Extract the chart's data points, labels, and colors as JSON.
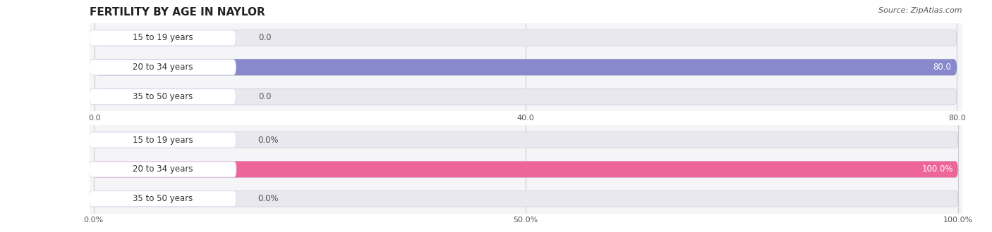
{
  "title": "FERTILITY BY AGE IN NAYLOR",
  "source": "Source: ZipAtlas.com",
  "top_chart": {
    "categories": [
      "15 to 19 years",
      "20 to 34 years",
      "35 to 50 years"
    ],
    "values": [
      0.0,
      80.0,
      0.0
    ],
    "bar_color": "#8888cc",
    "bar_color_light": "#aaaadd",
    "label_color": "#333333",
    "value_color_inside": "#ffffff",
    "value_color_outside": "#555555",
    "xlim": [
      0,
      80.0
    ],
    "xticks": [
      0.0,
      40.0,
      80.0
    ],
    "bg_color": "#f0f0f5"
  },
  "bottom_chart": {
    "categories": [
      "15 to 19 years",
      "20 to 34 years",
      "35 to 50 years"
    ],
    "values": [
      0.0,
      100.0,
      0.0
    ],
    "bar_color": "#ee6699",
    "bar_color_light": "#f09ab8",
    "label_color": "#333333",
    "value_color_inside": "#ffffff",
    "value_color_outside": "#555555",
    "xlim": [
      0,
      100.0
    ],
    "xticks": [
      0.0,
      50.0,
      100.0
    ],
    "xtick_labels": [
      "0.0%",
      "50.0%",
      "100.0%"
    ],
    "bg_color": "#f5f0f3"
  },
  "bar_height": 0.55,
  "label_fontsize": 8.5,
  "value_fontsize": 8.5,
  "title_fontsize": 11,
  "source_fontsize": 8
}
